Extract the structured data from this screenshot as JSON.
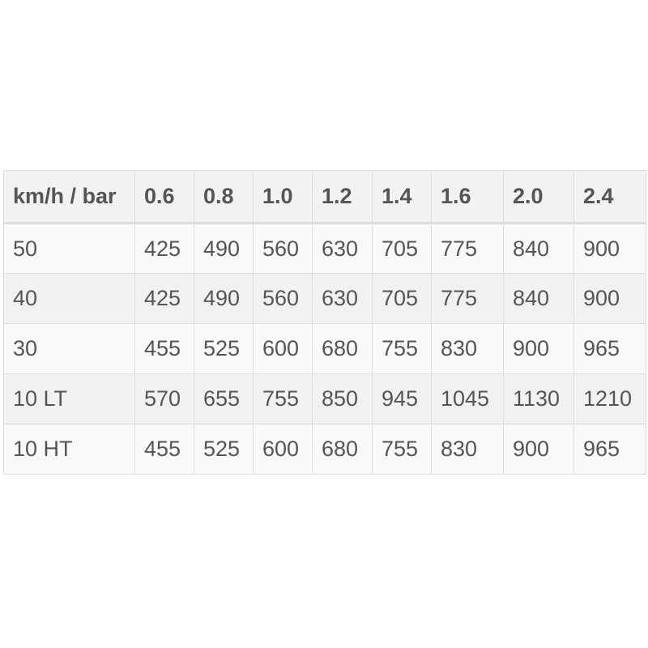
{
  "table": {
    "headers": [
      "km/h / bar",
      "0.6",
      "0.8",
      "1.0",
      "1.2",
      "1.4",
      "1.6",
      "2.0",
      "2.4"
    ],
    "rows": [
      [
        "50",
        "425",
        "490",
        "560",
        "630",
        "705",
        "775",
        "840",
        "900"
      ],
      [
        "40",
        "425",
        "490",
        "560",
        "630",
        "705",
        "775",
        "840",
        "900"
      ],
      [
        "30",
        "455",
        "525",
        "600",
        "680",
        "755",
        "830",
        "900",
        "965"
      ],
      [
        "10 LT",
        "570",
        "655",
        "755",
        "850",
        "945",
        "1045",
        "1130",
        "1210"
      ],
      [
        "10 HT",
        "455",
        "525",
        "600",
        "680",
        "755",
        "830",
        "900",
        "965"
      ]
    ]
  }
}
